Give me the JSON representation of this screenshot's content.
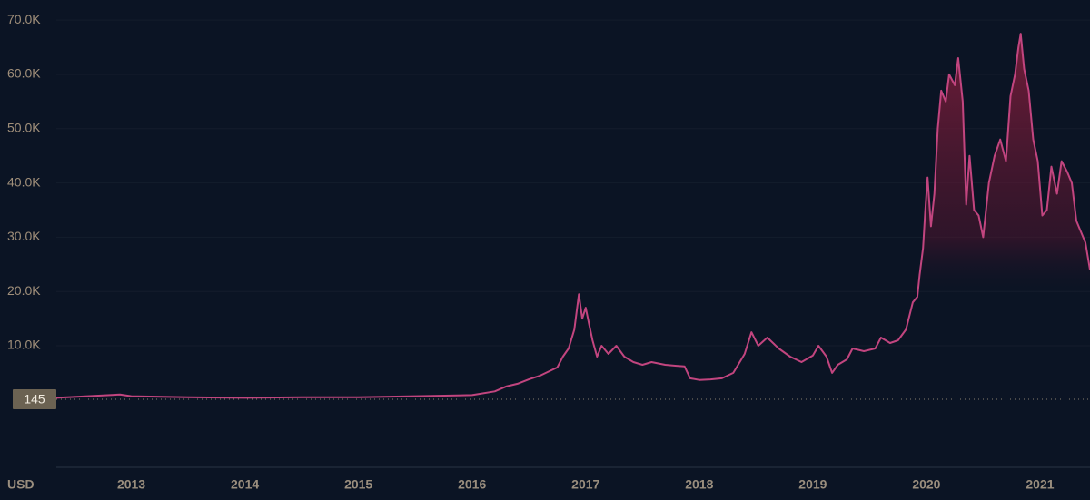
{
  "chart_data": {
    "type": "line",
    "axis_label": "USD",
    "color": "#c2457f",
    "grid": true,
    "xlim": [
      2012.34,
      2021.44
    ],
    "ylim": [
      -12400,
      73700
    ],
    "xticks": [
      2013,
      2014,
      2015,
      2016,
      2017,
      2018,
      2019,
      2020,
      2021
    ],
    "yticks": [
      {
        "value": 10000,
        "label": "10.0K"
      },
      {
        "value": 20000,
        "label": "20.0K"
      },
      {
        "value": 30000,
        "label": "30.0K"
      },
      {
        "value": 40000,
        "label": "40.0K"
      },
      {
        "value": 50000,
        "label": "50.0K"
      },
      {
        "value": 60000,
        "label": "60.0K"
      },
      {
        "value": 70000,
        "label": "70.0K"
      }
    ],
    "marker": {
      "value": 145
    },
    "x": [
      2012.34,
      2012.9,
      2013.0,
      2013.5,
      2014.0,
      2014.5,
      2015.0,
      2015.5,
      2016.0,
      2016.2,
      2016.3,
      2016.4,
      2016.5,
      2016.6,
      2016.7,
      2016.75,
      2016.8,
      2016.85,
      2016.9,
      2016.94,
      2016.97,
      2017.0,
      2017.03,
      2017.06,
      2017.1,
      2017.14,
      2017.2,
      2017.27,
      2017.34,
      2017.42,
      2017.5,
      2017.58,
      2017.7,
      2017.8,
      2017.87,
      2017.92,
      2018.0,
      2018.1,
      2018.2,
      2018.3,
      2018.4,
      2018.46,
      2018.52,
      2018.6,
      2018.7,
      2018.8,
      2018.9,
      2019.0,
      2019.05,
      2019.12,
      2019.17,
      2019.22,
      2019.3,
      2019.35,
      2019.45,
      2019.55,
      2019.6,
      2019.68,
      2019.75,
      2019.82,
      2019.88,
      2019.92,
      2019.94,
      2019.97,
      2019.99,
      2020.01,
      2020.04,
      2020.07,
      2020.1,
      2020.13,
      2020.17,
      2020.2,
      2020.25,
      2020.28,
      2020.32,
      2020.35,
      2020.38,
      2020.42,
      2020.46,
      2020.5,
      2020.55,
      2020.6,
      2020.65,
      2020.7,
      2020.74,
      2020.78,
      2020.81,
      2020.83,
      2020.86,
      2020.9,
      2020.94,
      2020.98,
      2021.02,
      2021.06,
      2021.1,
      2021.15,
      2021.19,
      2021.24,
      2021.28,
      2021.32,
      2021.36,
      2021.4,
      2021.44
    ],
    "values": [
      400,
      1000,
      700,
      500,
      400,
      500,
      500,
      700,
      900,
      1600,
      2500,
      3000,
      3800,
      4500,
      5500,
      6000,
      8000,
      9500,
      13000,
      19500,
      15000,
      17000,
      14000,
      11000,
      8000,
      10000,
      8500,
      10000,
      8000,
      7000,
      6500,
      7000,
      6500,
      6300,
      6200,
      4000,
      3700,
      3800,
      4000,
      5000,
      8500,
      12500,
      10000,
      11500,
      9500,
      8000,
      7000,
      8200,
      10000,
      8000,
      5000,
      6500,
      7500,
      9500,
      9000,
      9500,
      11500,
      10500,
      11000,
      13000,
      18000,
      19000,
      23000,
      28000,
      35000,
      41000,
      32000,
      38000,
      50000,
      57000,
      55000,
      60000,
      58000,
      63000,
      55000,
      36000,
      45000,
      35000,
      34000,
      30000,
      40000,
      45000,
      48000,
      44000,
      56000,
      60000,
      65000,
      67500,
      61000,
      57000,
      48000,
      44000,
      34000,
      35000,
      43000,
      38000,
      44000,
      42000,
      40000,
      33000,
      31000,
      29000,
      24000
    ]
  }
}
